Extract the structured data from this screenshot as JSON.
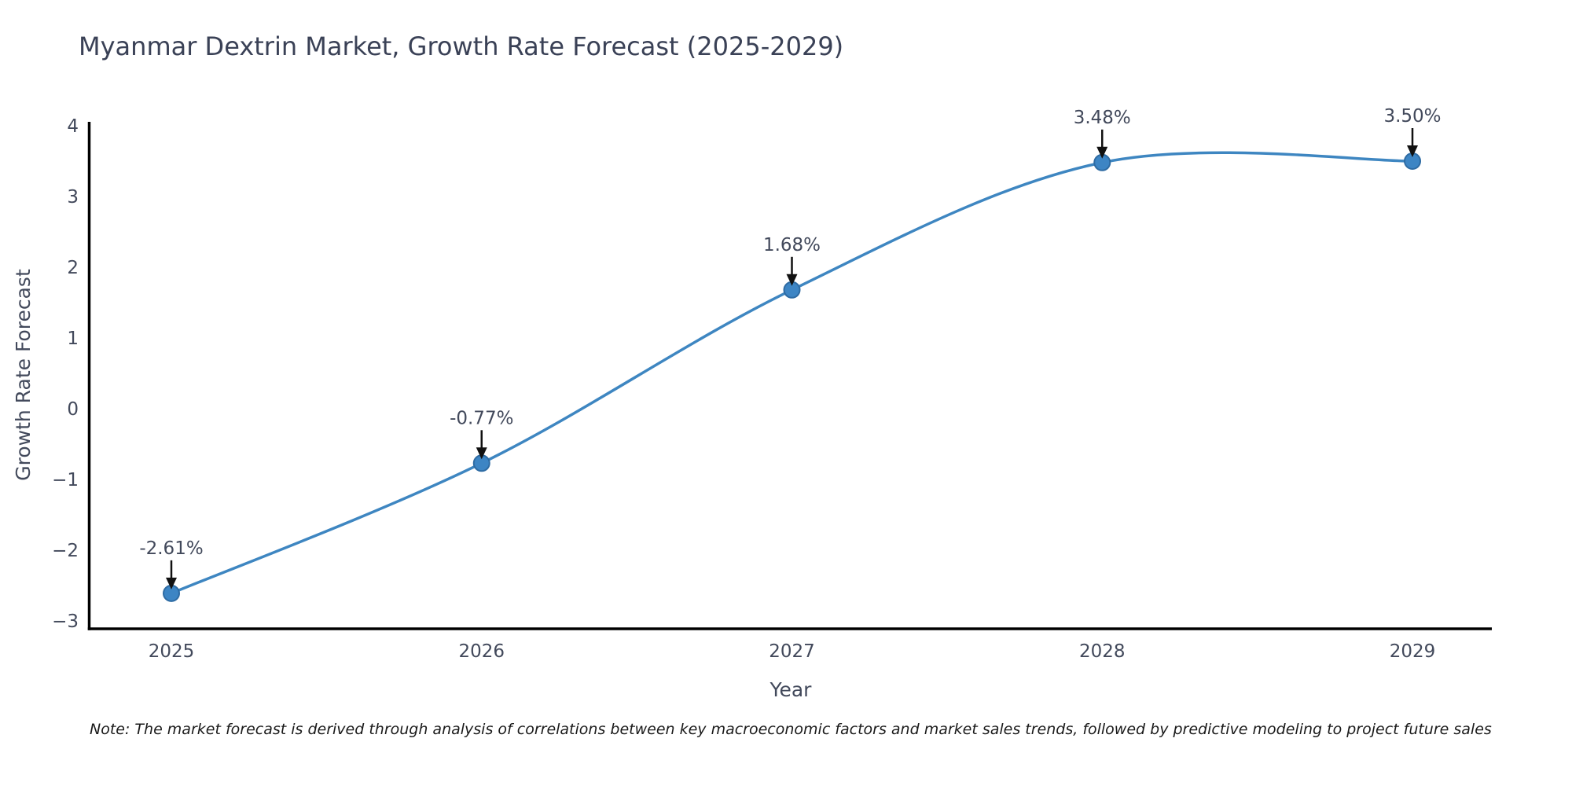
{
  "title": "Myanmar Dextrin Market, Growth Rate Forecast (2025-2029)",
  "note": "Note: The market forecast is derived through analysis of correlations between key macroeconomic factors and market sales trends, followed by predictive modeling to project future sales",
  "chart_data": {
    "type": "line",
    "title": "Myanmar Dextrin Market, Growth Rate Forecast (2025-2029)",
    "xlabel": "Year",
    "ylabel": "Growth Rate Forecast",
    "categories": [
      "2025",
      "2026",
      "2027",
      "2028",
      "2029"
    ],
    "series": [
      {
        "name": "Growth Rate Forecast",
        "values": [
          -2.61,
          -0.77,
          1.68,
          3.48,
          3.5
        ]
      }
    ],
    "points": [
      {
        "year": "2025",
        "value": -2.61,
        "label": "-2.61%"
      },
      {
        "year": "2026",
        "value": -0.77,
        "label": "-0.77%"
      },
      {
        "year": "2027",
        "value": 1.68,
        "label": "1.68%"
      },
      {
        "year": "2028",
        "value": 3.48,
        "label": "3.48%"
      },
      {
        "year": "2029",
        "value": 3.5,
        "label": "3.50%"
      }
    ],
    "yticks": [
      {
        "value": 4,
        "label": "4"
      },
      {
        "value": 3,
        "label": "3"
      },
      {
        "value": 2,
        "label": "2"
      },
      {
        "value": 1,
        "label": "1"
      },
      {
        "value": 0,
        "label": "0"
      },
      {
        "value": -1,
        "label": "−1"
      },
      {
        "value": -2,
        "label": "−2"
      },
      {
        "value": -3,
        "label": "−3"
      }
    ],
    "ylim": [
      -3,
      4
    ],
    "grid": false,
    "legend": "none",
    "smooth": true,
    "annotations_arrows": true,
    "colors": {
      "line": "#3e86c1",
      "marker_fill": "#3d85c4",
      "marker_edge": "#2e6ba3",
      "axis": "#000000",
      "tick_text": "#42495b",
      "title_text": "#3a4156",
      "annotation_text": "#42495b",
      "arrow": "#111111"
    }
  }
}
